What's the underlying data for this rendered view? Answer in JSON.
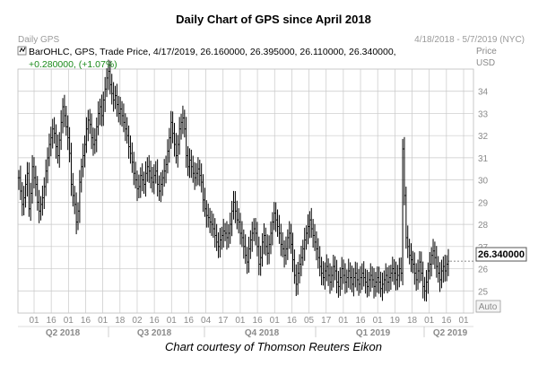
{
  "title": "Daily Chart of GPS since April 2018",
  "caption": "Chart courtesy of Thomson Reuters Eikon",
  "header": {
    "left": "Daily GPS",
    "right": "4/18/2018 - 5/7/2019 (NYC)"
  },
  "legend": {
    "line1": "BarOHLC, GPS, Trade Price, 4/17/2019, 26.160000, 26.395000, 26.110000, 26.340000,",
    "line2": "+0.280000, (+1.07%)"
  },
  "axis": {
    "price_label": "Price",
    "currency_label": "USD",
    "auto_label": "Auto",
    "last_price": "26.340000"
  },
  "colors": {
    "bars": "#000000",
    "grid": "#c8c8c8",
    "change": "#1a8a1a"
  },
  "chart_data": {
    "type": "ohlc-bar",
    "ylim": [
      24,
      35
    ],
    "yticks": [
      25,
      26,
      27,
      28,
      29,
      30,
      31,
      32,
      33,
      34
    ],
    "x_day_labels": [
      "01",
      "16",
      "01",
      "16",
      "01",
      "18",
      "02",
      "16",
      "01",
      "16",
      "04",
      "17",
      "01",
      "16",
      "01",
      "16",
      "05",
      "17",
      "01",
      "16",
      "01",
      "19",
      "18",
      "01",
      "16",
      "01"
    ],
    "x_period_labels": [
      "Q2 2018",
      "Q3 2018",
      "Q4 2018",
      "Q1 2019",
      "Q2 2019"
    ],
    "last_price": 26.34,
    "closes": [
      30.1,
      29.5,
      28.9,
      29.2,
      29.8,
      30.3,
      28.7,
      29.4,
      30.6,
      30.1,
      29.8,
      29.0,
      28.6,
      28.9,
      29.2,
      29.7,
      30.4,
      31.0,
      31.6,
      31.9,
      32.3,
      32.1,
      31.5,
      31.1,
      31.8,
      32.6,
      33.3,
      32.9,
      32.4,
      31.9,
      31.2,
      29.8,
      29.3,
      28.9,
      28.1,
      28.6,
      29.9,
      30.6,
      31.1,
      31.6,
      32.3,
      32.7,
      32.5,
      31.9,
      31.6,
      31.8,
      32.4,
      33.0,
      33.3,
      32.9,
      33.6,
      34.1,
      34.6,
      34.9,
      34.3,
      33.9,
      33.6,
      33.8,
      33.4,
      33.0,
      33.2,
      32.9,
      32.6,
      32.3,
      32.0,
      31.5,
      31.2,
      30.8,
      30.3,
      30.0,
      29.6,
      29.7,
      30.2,
      30.0,
      29.8,
      30.3,
      30.6,
      30.4,
      30.1,
      29.9,
      30.2,
      30.4,
      29.8,
      29.5,
      29.8,
      30.1,
      30.4,
      30.7,
      31.3,
      31.9,
      32.6,
      32.1,
      31.6,
      31.1,
      31.6,
      32.3,
      32.6,
      32.8,
      32.3,
      31.1,
      30.6,
      30.9,
      30.6,
      30.3,
      30.1,
      30.3,
      30.5,
      30.2,
      29.9,
      29.1,
      28.7,
      28.4,
      28.3,
      28.1,
      28.0,
      27.8,
      27.5,
      27.2,
      27.0,
      27.3,
      27.5,
      27.7,
      27.6,
      27.4,
      27.6,
      28.0,
      28.6,
      29.0,
      28.6,
      28.2,
      28.1,
      27.6,
      27.4,
      27.0,
      26.6,
      26.3,
      26.9,
      27.3,
      27.6,
      27.8,
      27.6,
      27.0,
      26.2,
      26.5,
      27.2,
      27.5,
      27.0,
      26.7,
      27.1,
      27.6,
      28.1,
      28.5,
      28.2,
      27.9,
      27.6,
      27.1,
      26.9,
      26.6,
      26.9,
      27.4,
      27.6,
      27.1,
      26.4,
      25.7,
      25.3,
      25.8,
      26.2,
      26.5,
      26.9,
      27.3,
      27.6,
      27.9,
      28.2,
      27.8,
      27.5,
      27.2,
      26.9,
      26.5,
      26.1,
      25.8,
      25.6,
      25.9,
      26.1,
      25.7,
      25.4,
      25.7,
      26.1,
      25.9,
      25.4,
      25.2,
      25.6,
      26.0,
      25.7,
      25.4,
      25.6,
      25.9,
      25.6,
      25.3,
      25.6,
      25.8,
      25.5,
      25.3,
      25.6,
      25.8,
      25.6,
      25.4,
      25.2,
      25.5,
      25.7,
      25.5,
      25.2,
      25.4,
      25.6,
      25.4,
      25.1,
      25.3,
      25.5,
      25.7,
      25.4,
      25.6,
      25.8,
      26.0,
      25.8,
      25.5,
      25.7,
      26.0,
      25.8,
      31.4,
      29.3,
      27.4,
      27.0,
      26.6,
      26.4,
      26.2,
      25.8,
      25.5,
      25.9,
      26.3,
      25.8,
      25.2,
      25.0,
      25.4,
      25.9,
      26.2,
      26.6,
      26.8,
      26.5,
      26.1,
      25.8,
      25.5,
      25.9,
      26.1,
      25.9,
      26.2,
      26.34
    ]
  }
}
